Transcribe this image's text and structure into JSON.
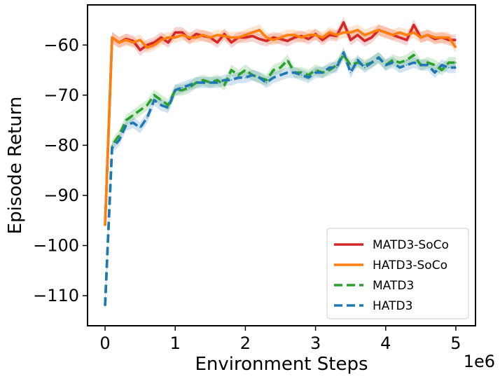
{
  "chart_data": {
    "type": "line",
    "title": "",
    "xlabel": "Environment Steps",
    "ylabel": "Episode Return",
    "x_offset_label": "1e6",
    "xlim": [
      -0.25,
      5.28
    ],
    "ylim": [
      -116,
      -52
    ],
    "x_ticks": [
      0,
      1,
      2,
      3,
      4,
      5
    ],
    "x_tick_labels": [
      "0",
      "1",
      "2",
      "3",
      "4",
      "5"
    ],
    "y_ticks": [
      -110,
      -100,
      -90,
      -80,
      -70,
      -60
    ],
    "y_tick_labels": [
      "−110",
      "−100",
      "−90",
      "−80",
      "−70",
      "−60"
    ],
    "grid": false,
    "legend_position": "lower-right",
    "x": [
      0,
      0.1,
      0.2,
      0.3,
      0.4,
      0.5,
      0.6,
      0.7,
      0.8,
      0.9,
      1.0,
      1.1,
      1.2,
      1.3,
      1.4,
      1.5,
      1.6,
      1.7,
      1.8,
      1.9,
      2.0,
      2.1,
      2.2,
      2.3,
      2.4,
      2.5,
      2.6,
      2.7,
      2.8,
      2.9,
      3.0,
      3.1,
      3.2,
      3.3,
      3.4,
      3.5,
      3.6,
      3.7,
      3.8,
      3.9,
      4.0,
      4.1,
      4.2,
      4.3,
      4.4,
      4.5,
      4.6,
      4.7,
      4.8,
      4.9,
      5.0
    ],
    "series": [
      {
        "name": "MATD3-SoCo",
        "color": "#d62728",
        "style": "solid",
        "values": [
          -96,
          -58.5,
          -59.5,
          -58.8,
          -59.2,
          -61,
          -60,
          -59.5,
          -58.5,
          -59.5,
          -57.5,
          -57.5,
          -58.8,
          -57.8,
          -58.2,
          -58.5,
          -59.5,
          -57.8,
          -59.5,
          -58.5,
          -58.5,
          -58.2,
          -58.8,
          -59.2,
          -58.5,
          -58.8,
          -59.2,
          -58.5,
          -58.2,
          -58.8,
          -57.8,
          -59,
          -58,
          -58.2,
          -55.5,
          -59,
          -58,
          -59.2,
          -58.5,
          -57,
          -57.5,
          -58,
          -58.5,
          -59,
          -56,
          -58.5,
          -58,
          -58.8,
          -58.5,
          -59,
          -59
        ]
      },
      {
        "name": "HATD3-SoCo",
        "color": "#ff7f0e",
        "style": "solid",
        "values": [
          -96,
          -58.5,
          -59.5,
          -59,
          -59.5,
          -59,
          -60.5,
          -60,
          -59,
          -58.5,
          -58.5,
          -58,
          -58.5,
          -58.5,
          -58,
          -58.5,
          -58,
          -58.2,
          -58.5,
          -58.5,
          -58,
          -57.5,
          -57,
          -58.5,
          -59,
          -58.5,
          -58,
          -58,
          -58.5,
          -58,
          -58,
          -58.5,
          -57.5,
          -58,
          -57.5,
          -57.5,
          -57,
          -58,
          -57.5,
          -57,
          -57.5,
          -58,
          -57.5,
          -58,
          -57.5,
          -58.5,
          -58,
          -58.5,
          -58.5,
          -58.5,
          -60.5
        ]
      },
      {
        "name": "MATD3",
        "color": "#2ca02c",
        "style": "dashed",
        "values": [
          -112,
          -80,
          -78,
          -75,
          -74,
          -73,
          -72,
          -70,
          -71,
          -72,
          -69,
          -69,
          -68.5,
          -67.5,
          -67,
          -67.5,
          -67,
          -68,
          -65,
          -66,
          -65,
          -66,
          -66.5,
          -67,
          -65,
          -64.5,
          -63,
          -65.5,
          -65.5,
          -66,
          -65,
          -65.5,
          -65,
          -64,
          -62,
          -64,
          -63.5,
          -64,
          -63.5,
          -62.5,
          -64,
          -63,
          -63.5,
          -63,
          -62,
          -64,
          -63.5,
          -64,
          -65,
          -63.5,
          -63.5
        ]
      },
      {
        "name": "HATD3",
        "color": "#1f77b4",
        "style": "dashed",
        "values": [
          -112,
          -80.5,
          -79,
          -76,
          -75.5,
          -76.5,
          -74.5,
          -71,
          -72,
          -72.5,
          -69,
          -68.5,
          -68,
          -67.5,
          -67.5,
          -67.5,
          -67.5,
          -67,
          -67,
          -66.5,
          -66.5,
          -66,
          -66.5,
          -67.5,
          -66.5,
          -66,
          -65.5,
          -65.5,
          -66,
          -66.5,
          -65.5,
          -65.5,
          -64.5,
          -64.5,
          -61.5,
          -65.5,
          -63,
          -64.5,
          -63.5,
          -62.5,
          -64,
          -63.5,
          -64.5,
          -64,
          -63.5,
          -64,
          -64,
          -65.5,
          -64,
          -64.5,
          -64.5
        ]
      }
    ]
  }
}
